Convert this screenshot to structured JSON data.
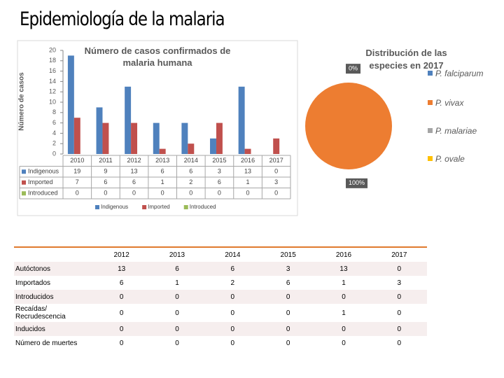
{
  "title": "Epidemiología de la malaria",
  "chart_data": [
    {
      "type": "bar",
      "title": "Número de casos confirmados de malaria humana",
      "ylabel": "Número de casos",
      "categories": [
        "2010",
        "2011",
        "2012",
        "2013",
        "2014",
        "2015",
        "2016",
        "2017"
      ],
      "series": [
        {
          "name": "Indigenous",
          "color": "#4f81bd",
          "values": [
            19,
            9,
            13,
            6,
            6,
            3,
            13,
            0
          ]
        },
        {
          "name": "Imported",
          "color": "#c0504d",
          "values": [
            7,
            6,
            6,
            1,
            2,
            6,
            1,
            3
          ]
        },
        {
          "name": "Introduced",
          "color": "#9bbb59",
          "values": [
            0,
            0,
            0,
            0,
            0,
            0,
            0,
            0
          ]
        }
      ],
      "ylim": [
        0,
        20
      ],
      "yticks": [
        0,
        2,
        4,
        6,
        8,
        10,
        12,
        14,
        16,
        18,
        20
      ],
      "grid": false,
      "legend": "bottom",
      "data_table": true
    },
    {
      "type": "pie",
      "title": "Distribución de las especies en 2017",
      "categories": [
        "P. falciparum",
        "P. vivax",
        "P. malariae",
        "P. ovale"
      ],
      "values": [
        0,
        100,
        0,
        0
      ],
      "value_labels": [
        "0%",
        "100%",
        null,
        null
      ],
      "colors": [
        "#4f81bd",
        "#ed7d31",
        "#a5a5a5",
        "#ffc000"
      ],
      "legend": "right"
    }
  ],
  "table": {
    "header": [
      "2012",
      "2013",
      "2014",
      "2015",
      "2016",
      "2017"
    ],
    "rows": [
      {
        "label": "Autóctonos",
        "values": [
          13,
          6,
          6,
          3,
          13,
          0
        ]
      },
      {
        "label": "Importados",
        "values": [
          6,
          1,
          2,
          6,
          1,
          3
        ]
      },
      {
        "label": "Introducidos",
        "values": [
          0,
          0,
          0,
          0,
          0,
          0
        ]
      },
      {
        "label": "Recaídas/ Recrudescencia",
        "values": [
          0,
          0,
          0,
          0,
          1,
          0
        ]
      },
      {
        "label": "Inducidos",
        "values": [
          0,
          0,
          0,
          0,
          0,
          0
        ]
      },
      {
        "label": "Número de muertes",
        "values": [
          0,
          0,
          0,
          0,
          0,
          0
        ]
      }
    ]
  }
}
